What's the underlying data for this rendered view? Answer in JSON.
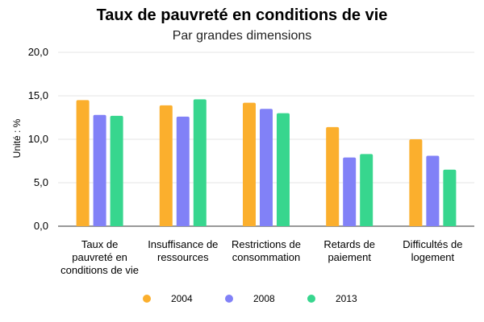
{
  "chart_data": {
    "type": "bar",
    "title": "Taux de pauvreté en conditions de vie",
    "subtitle": "Par grandes dimensions",
    "ylabel": "Unité : %",
    "xlabel": "",
    "ylim": [
      0,
      20
    ],
    "yticks": [
      "0,0",
      "5,0",
      "10,0",
      "15,0",
      "20,0"
    ],
    "grid": true,
    "legend_position": "bottom",
    "categories": [
      [
        "Taux de",
        "pauvreté en",
        "conditions de vie"
      ],
      [
        "Insuffisance de",
        "ressources"
      ],
      [
        "Restrictions de",
        "consommation"
      ],
      [
        "Retards de",
        "paiement"
      ],
      [
        "Difficultés de",
        "logement"
      ]
    ],
    "series": [
      {
        "name": "2004",
        "color": "#fbaf2d",
        "values": [
          14.5,
          13.9,
          14.2,
          11.4,
          10.0
        ]
      },
      {
        "name": "2008",
        "color": "#8181f7",
        "values": [
          12.8,
          12.6,
          13.5,
          7.9,
          8.1
        ]
      },
      {
        "name": "2013",
        "color": "#37d68e",
        "values": [
          12.7,
          14.6,
          13.0,
          8.3,
          6.5
        ]
      }
    ]
  }
}
